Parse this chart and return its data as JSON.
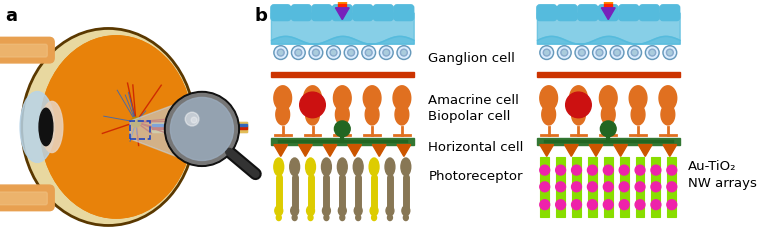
{
  "panel_a_label": "a",
  "panel_b_label": "b",
  "labels": {
    "ganglion": "Ganglion cell",
    "amacrine": "Amacrine cell",
    "biopolar": "Biopolar cell",
    "horizontal": "Horizontal cell",
    "photoreceptor": "Photoreceptor",
    "au_tio2": "Au-TiO₂",
    "nw_arrays": "NW arrays"
  },
  "colors": {
    "bg": "#FFFFFF",
    "eye_sclera": "#E8D8A0",
    "eye_orange": "#E8820A",
    "eye_dark_ring": "#5A3800",
    "eye_inner": "#C86000",
    "cornea": "#B8D4E8",
    "lens": "#E8D0B8",
    "pupil": "#111111",
    "muscle_orange": "#E8A050",
    "muscle_light": "#F0C080",
    "optic_nerve_bg": "#D4A870",
    "nerve_red": "#CC2200",
    "nerve_blue": "#3366BB",
    "cell_fluid": "#55BBDD",
    "cell_orange": "#E07020",
    "cell_red": "#CC1111",
    "cell_green": "#226622",
    "cell_yellow": "#DDCC00",
    "cell_brown": "#8B7355",
    "nw_green": "#88DD00",
    "nw_pink": "#EE22AA",
    "red_layer": "#CC3300",
    "orange_layer": "#DD6600",
    "green_layer": "#337733",
    "beam_blue": "#C0D8F0"
  },
  "label_fontsize": 9.5,
  "panel_fontsize": 13
}
